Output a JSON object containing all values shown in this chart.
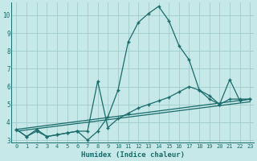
{
  "xlabel": "Humidex (Indice chaleur)",
  "background_color": "#c6e8e8",
  "grid_color": "#a0cccc",
  "line_color": "#1a6b6b",
  "xlim_min": -0.5,
  "xlim_max": 23.4,
  "ylim_min": 2.85,
  "ylim_max": 10.7,
  "yticks": [
    3,
    4,
    5,
    6,
    7,
    8,
    9,
    10
  ],
  "xtick_labels": [
    "0",
    "1",
    "2",
    "3",
    "4",
    "5",
    "6",
    "7",
    "8",
    "9",
    "10",
    "11",
    "12",
    "13",
    "14",
    "15",
    "16",
    "17",
    "18",
    "19",
    "20",
    "21",
    "22",
    "23"
  ],
  "series1_x": [
    0,
    1,
    2,
    3,
    4,
    5,
    6,
    7,
    8,
    9,
    10,
    11,
    12,
    13,
    14,
    15,
    16,
    17,
    18,
    19,
    20,
    21,
    22,
    23
  ],
  "series1_y": [
    3.6,
    3.2,
    3.6,
    3.2,
    3.3,
    3.4,
    3.5,
    3.0,
    3.5,
    4.3,
    5.8,
    8.5,
    9.6,
    10.1,
    10.5,
    9.7,
    8.3,
    7.5,
    5.8,
    5.5,
    5.0,
    5.3,
    5.3,
    5.3
  ],
  "series2_x": [
    0,
    1,
    2,
    3,
    4,
    5,
    6,
    7,
    8,
    9,
    10,
    11,
    12,
    13,
    14,
    15,
    16,
    17,
    18,
    19,
    20,
    21,
    22,
    23
  ],
  "series2_y": [
    3.6,
    3.2,
    3.5,
    3.2,
    3.3,
    3.4,
    3.5,
    3.5,
    6.3,
    3.7,
    4.2,
    4.5,
    4.8,
    5.0,
    5.2,
    5.4,
    5.7,
    6.0,
    5.8,
    5.3,
    5.0,
    6.4,
    5.2,
    5.3
  ],
  "series3_x": [
    0,
    23
  ],
  "series3_y": [
    3.6,
    5.3
  ],
  "series4_x": [
    0,
    23
  ],
  "series4_y": [
    3.5,
    5.15
  ]
}
